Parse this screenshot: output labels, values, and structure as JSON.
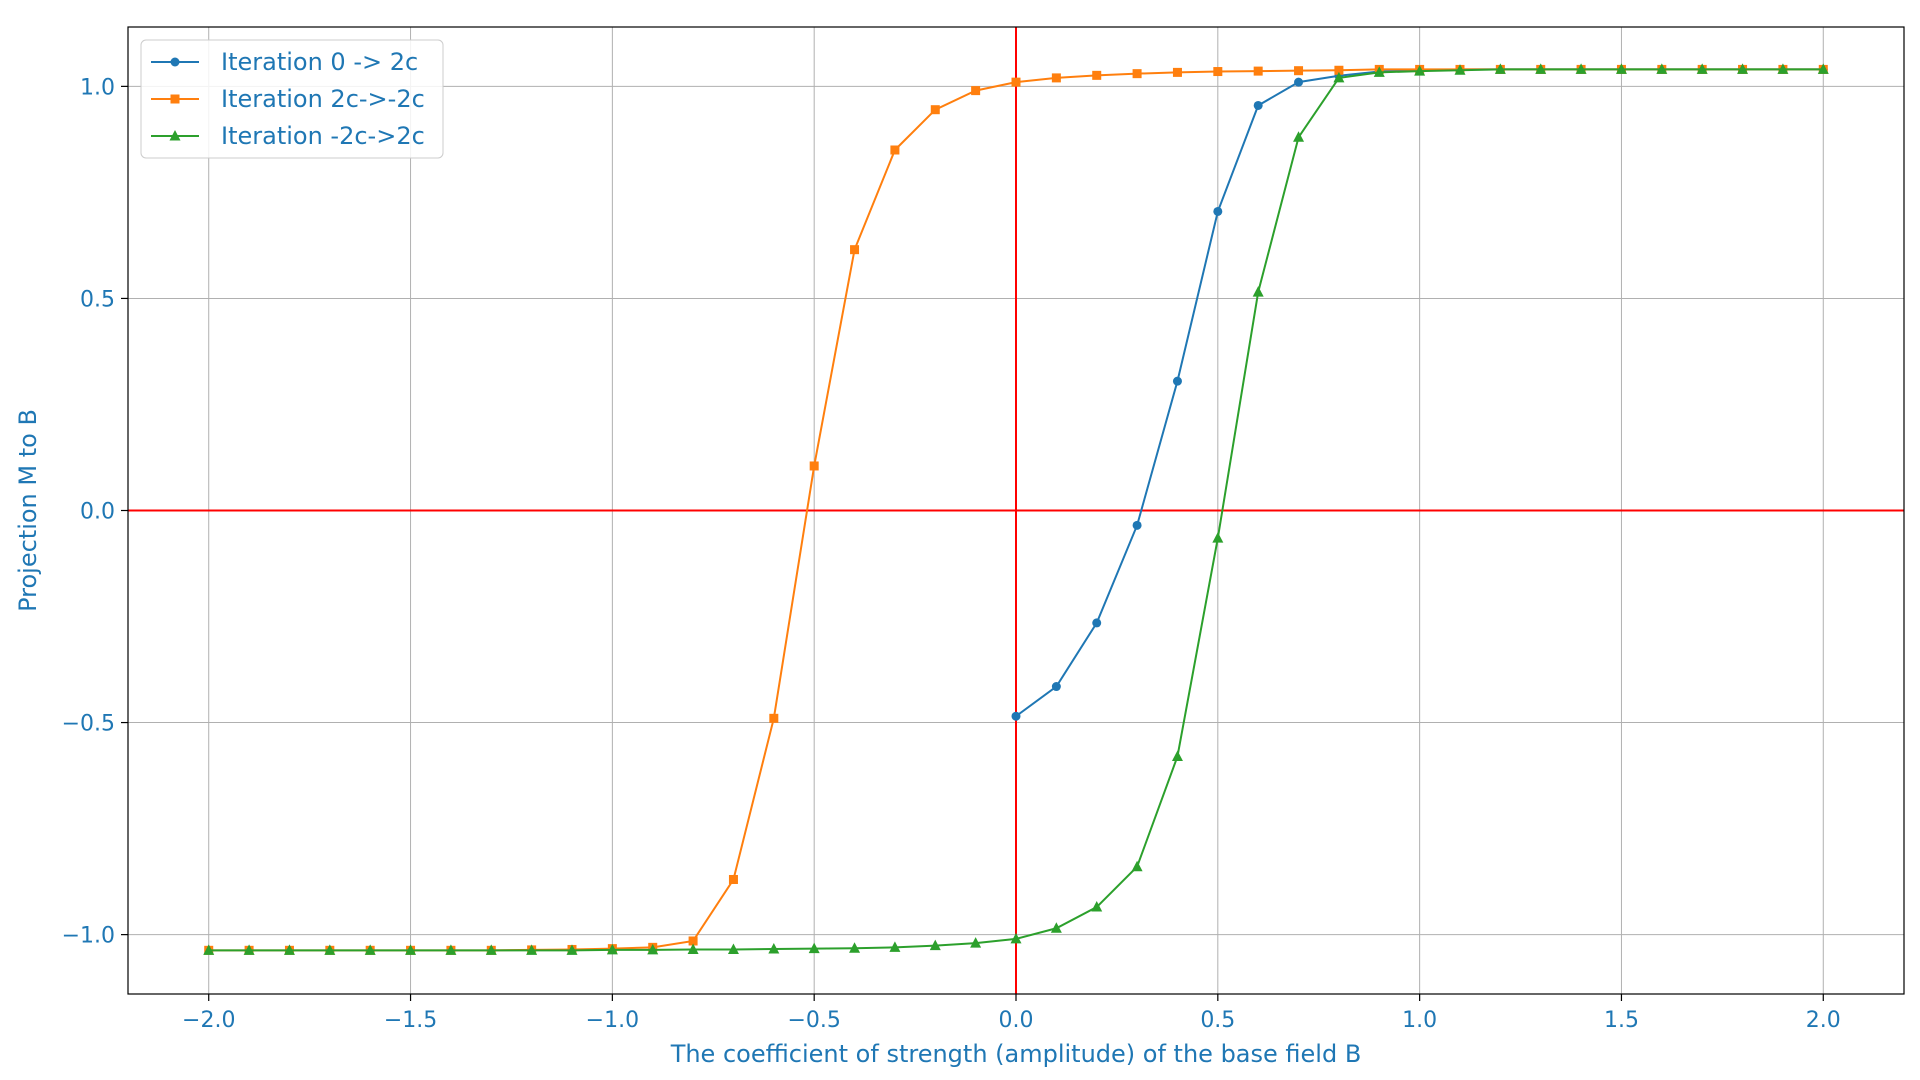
{
  "chart_data": {
    "type": "line",
    "title": "",
    "xlabel": "The coefficient of strength (amplitude) of the base field B",
    "ylabel": "Projection M to B",
    "xlim": [
      -2.2,
      2.2
    ],
    "ylim": [
      -1.14,
      1.14
    ],
    "xticks": [
      -2.0,
      -1.5,
      -1.0,
      -0.5,
      0.0,
      0.5,
      1.0,
      1.5,
      2.0
    ],
    "xtick_labels": [
      "−2.0",
      "−1.5",
      "−1.0",
      "−0.5",
      "0.0",
      "0.5",
      "1.0",
      "1.5",
      "2.0"
    ],
    "yticks": [
      -1.0,
      -0.5,
      0.0,
      0.5,
      1.0
    ],
    "ytick_labels": [
      "−1.0",
      "−0.5",
      "0.0",
      "0.5",
      "1.0"
    ],
    "grid": true,
    "legend_position": "top-left",
    "reference_lines": {
      "x": 0,
      "y": 0,
      "color": "#ff0000"
    },
    "series": [
      {
        "name": "Iteration 0 -> 2c",
        "color": "#1f77b4",
        "marker": "circle",
        "x": [
          0.0,
          0.1,
          0.2,
          0.3,
          0.4,
          0.5,
          0.6,
          0.7,
          0.8,
          0.9,
          1.0,
          1.1,
          1.2,
          1.3,
          1.4,
          1.5,
          1.6,
          1.7,
          1.8,
          1.9,
          2.0
        ],
        "y": [
          -0.485,
          -0.415,
          -0.265,
          -0.035,
          0.305,
          0.705,
          0.955,
          1.01,
          1.025,
          1.035,
          1.038,
          1.04,
          1.04,
          1.04,
          1.04,
          1.04,
          1.04,
          1.04,
          1.04,
          1.04,
          1.04
        ]
      },
      {
        "name": "Iteration 2c->-2c",
        "color": "#ff7f0e",
        "marker": "square",
        "x": [
          2.0,
          1.9,
          1.8,
          1.7,
          1.6,
          1.5,
          1.4,
          1.3,
          1.2,
          1.1,
          1.0,
          0.9,
          0.8,
          0.7,
          0.6,
          0.5,
          0.4,
          0.3,
          0.2,
          0.1,
          0.0,
          -0.1,
          -0.2,
          -0.3,
          -0.4,
          -0.5,
          -0.6,
          -0.7,
          -0.8,
          -0.9,
          -1.0,
          -1.1,
          -1.2,
          -1.3,
          -1.4,
          -1.5,
          -1.6,
          -1.7,
          -1.8,
          -1.9,
          -2.0
        ],
        "y": [
          1.04,
          1.04,
          1.04,
          1.04,
          1.04,
          1.04,
          1.04,
          1.04,
          1.04,
          1.04,
          1.04,
          1.04,
          1.038,
          1.037,
          1.036,
          1.035,
          1.033,
          1.03,
          1.026,
          1.02,
          1.01,
          0.99,
          0.945,
          0.85,
          0.615,
          0.105,
          -0.49,
          -0.87,
          -1.015,
          -1.03,
          -1.033,
          -1.035,
          -1.036,
          -1.037,
          -1.037,
          -1.037,
          -1.037,
          -1.037,
          -1.037,
          -1.037,
          -1.037
        ]
      },
      {
        "name": "Iteration -2c->2c",
        "color": "#2ca02c",
        "marker": "triangle",
        "x": [
          -2.0,
          -1.9,
          -1.8,
          -1.7,
          -1.6,
          -1.5,
          -1.4,
          -1.3,
          -1.2,
          -1.1,
          -1.0,
          -0.9,
          -0.8,
          -0.7,
          -0.6,
          -0.5,
          -0.4,
          -0.3,
          -0.2,
          -0.1,
          0.0,
          0.1,
          0.2,
          0.3,
          0.4,
          0.5,
          0.6,
          0.7,
          0.8,
          0.9,
          1.0,
          1.1,
          1.2,
          1.3,
          1.4,
          1.5,
          1.6,
          1.7,
          1.8,
          1.9,
          2.0
        ],
        "y": [
          -1.037,
          -1.037,
          -1.037,
          -1.037,
          -1.037,
          -1.037,
          -1.037,
          -1.037,
          -1.037,
          -1.037,
          -1.036,
          -1.036,
          -1.035,
          -1.035,
          -1.034,
          -1.033,
          -1.032,
          -1.03,
          -1.026,
          -1.02,
          -1.01,
          -0.985,
          -0.935,
          -0.84,
          -0.58,
          -0.065,
          0.515,
          0.88,
          1.02,
          1.033,
          1.036,
          1.038,
          1.04,
          1.04,
          1.04,
          1.04,
          1.04,
          1.04,
          1.04,
          1.04,
          1.04
        ]
      }
    ]
  }
}
